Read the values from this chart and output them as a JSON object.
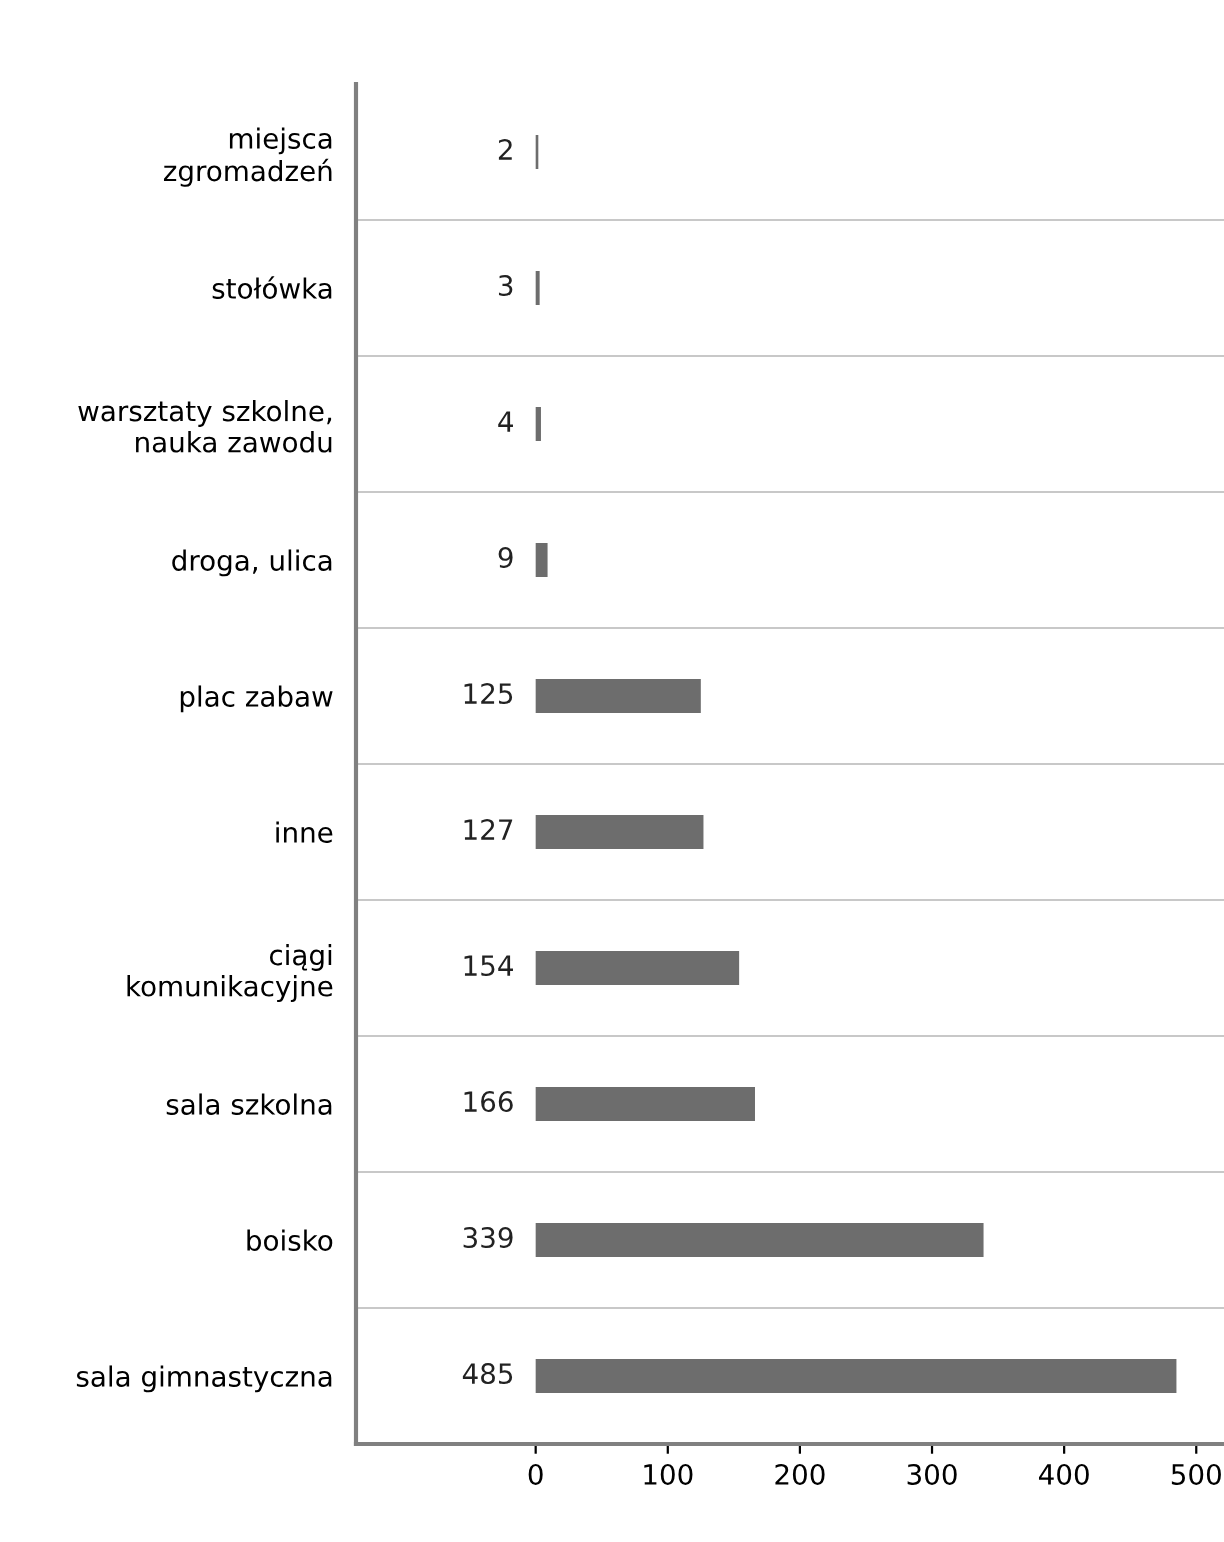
{
  "chart_data": {
    "type": "bar",
    "orientation": "horizontal",
    "categories": [
      "miejsca\nzgromadzeń",
      "stołówka",
      "warsztaty szkolne,\nnauka zawodu",
      "droga, ulica",
      "plac zabaw",
      "inne",
      "ciągi\nkomunikacyjne",
      "sala szkolna",
      "boisko",
      "sala gimnastyczna"
    ],
    "values": [
      2,
      3,
      4,
      9,
      125,
      127,
      154,
      166,
      339,
      485
    ],
    "color": "#6d6d6d",
    "data_labels": true,
    "grid": "y",
    "xlim": [
      -136,
      521
    ],
    "xticks": [
      0,
      100,
      200,
      300,
      400,
      500
    ]
  }
}
